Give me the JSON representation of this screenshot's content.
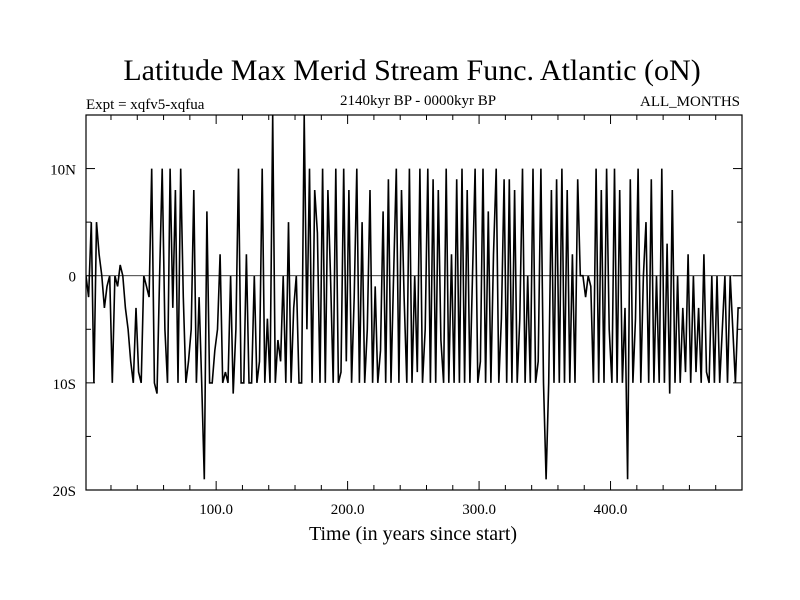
{
  "chart_data": {
    "type": "line",
    "title": "Latitude Max Merid Stream Func. Atlantic (oN)",
    "subtitle_left": "Expt = xqfv5-xqfua",
    "subtitle_center": "2140kyr BP - 0000kyr BP",
    "subtitle_right": "ALL_MONTHS",
    "xlabel": "Time (in years since start)",
    "ylabel": "",
    "xlim": [
      1,
      500
    ],
    "ylim": [
      -20,
      15
    ],
    "x_ticks": [
      100,
      200,
      300,
      400
    ],
    "x_tick_labels": [
      "100.0",
      "200.0",
      "300.0",
      "400.0"
    ],
    "x_minor_step": 20,
    "y_ticks": [
      -20,
      -10,
      0,
      10
    ],
    "y_tick_labels": [
      "20S",
      "10S",
      "0",
      "10N"
    ],
    "y_minor_step": 5,
    "grid": false,
    "zero_line": true,
    "series": [
      {
        "name": "latitude",
        "x_start": 1,
        "x_step": 2,
        "values": [
          0,
          -2,
          5,
          -10,
          5,
          2,
          0,
          -3,
          -1,
          0,
          -10,
          0,
          -1,
          1,
          0,
          -3,
          -5,
          -8,
          -10,
          -3,
          -9,
          -10,
          0,
          -1,
          -2,
          10,
          -10,
          -11,
          0,
          10,
          -5,
          -10,
          10,
          -3,
          8,
          -10,
          10,
          -2,
          -10,
          -8,
          -5,
          8,
          -10,
          -2,
          -10,
          -19,
          6,
          -10,
          -10,
          -7,
          -5,
          2,
          -10,
          -9,
          -10,
          0,
          -11,
          -5,
          10,
          -10,
          -10,
          2,
          -10,
          -10,
          0,
          -10,
          -8,
          10,
          -10,
          -4,
          -10,
          15,
          -10,
          -6,
          -8,
          0,
          -10,
          5,
          -10,
          -3,
          0,
          -10,
          -10,
          15,
          -5,
          10,
          -10,
          8,
          4,
          -10,
          10,
          -10,
          8,
          0,
          -10,
          10,
          -10,
          -9,
          10,
          -8,
          8,
          -10,
          -2,
          10,
          -10,
          5,
          -10,
          -5,
          8,
          -10,
          -1,
          -10,
          -7,
          6,
          -10,
          9,
          -10,
          0,
          10,
          -10,
          8,
          -2,
          -10,
          10,
          -10,
          0,
          -9,
          10,
          -10,
          -5,
          10,
          -10,
          9,
          -10,
          8,
          -6,
          -10,
          10,
          -10,
          2,
          -10,
          9,
          -10,
          10,
          -10,
          8,
          -10,
          0,
          10,
          -10,
          -8,
          10,
          -10,
          6,
          -10,
          2,
          10,
          -10,
          -4,
          9,
          -10,
          9,
          -10,
          8,
          -10,
          -4,
          10,
          -10,
          0,
          -10,
          10,
          -10,
          -8,
          10,
          -10,
          -19,
          -10,
          8,
          -10,
          9,
          -10,
          10,
          -10,
          8,
          -10,
          2,
          -10,
          9,
          0,
          0,
          -2,
          0,
          -1,
          -10,
          10,
          -10,
          8,
          -10,
          10,
          -5,
          -10,
          10,
          -10,
          8,
          -10,
          -3,
          -19,
          9,
          -10,
          -4,
          10,
          -10,
          0,
          5,
          -10,
          9,
          -10,
          0,
          -10,
          10,
          -10,
          3,
          -11,
          8,
          -10,
          0,
          -10,
          -3,
          -9,
          2,
          -10,
          0,
          -9,
          -3,
          -10,
          2,
          -9,
          -10,
          0,
          -10,
          0,
          -10,
          -5,
          0,
          -10,
          0,
          -5,
          -10,
          -3,
          -3
        ]
      }
    ],
    "colors": {
      "line": "#000000",
      "background": "#ffffff"
    }
  }
}
